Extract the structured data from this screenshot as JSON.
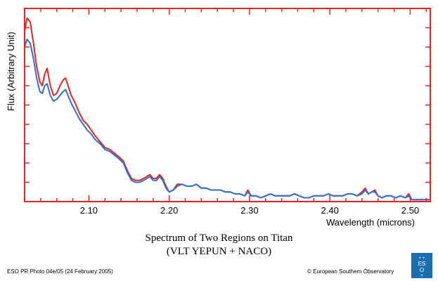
{
  "chart_data": {
    "type": "line",
    "title": "Spectrum of Two Regions on Titan",
    "subtitle": "(VLT YEPUN + NACO)",
    "xlabel": "Wavelength (microns)",
    "ylabel": "Flux (Arbitrary Unit)",
    "xlim": [
      2.02,
      2.525
    ],
    "ylim": [
      0,
      1
    ],
    "x_ticks": [
      2.1,
      2.2,
      2.3,
      2.4,
      2.5
    ],
    "x_tick_labels": [
      "2.10",
      "2.20",
      "2.30",
      "2.40",
      "2.50"
    ],
    "y_ticks": [
      0.1,
      0.2,
      0.3,
      0.4,
      0.5,
      0.6,
      0.7,
      0.8,
      0.9
    ],
    "grid": false,
    "series": [
      {
        "color": "#e8231f",
        "points": [
          [
            2.02,
            0.88
          ],
          [
            2.023,
            0.95
          ],
          [
            2.027,
            0.93
          ],
          [
            2.031,
            0.82
          ],
          [
            2.035,
            0.7
          ],
          [
            2.039,
            0.62
          ],
          [
            2.042,
            0.6
          ],
          [
            2.045,
            0.66
          ],
          [
            2.048,
            0.69
          ],
          [
            2.052,
            0.6
          ],
          [
            2.056,
            0.55
          ],
          [
            2.06,
            0.56
          ],
          [
            2.064,
            0.6
          ],
          [
            2.068,
            0.63
          ],
          [
            2.071,
            0.64
          ],
          [
            2.074,
            0.6
          ],
          [
            2.078,
            0.55
          ],
          [
            2.083,
            0.51
          ],
          [
            2.088,
            0.46
          ],
          [
            2.093,
            0.42
          ],
          [
            2.098,
            0.4
          ],
          [
            2.103,
            0.37
          ],
          [
            2.108,
            0.34
          ],
          [
            2.114,
            0.31
          ],
          [
            2.12,
            0.28
          ],
          [
            2.126,
            0.27
          ],
          [
            2.132,
            0.25
          ],
          [
            2.138,
            0.23
          ],
          [
            2.143,
            0.21
          ],
          [
            2.148,
            0.16
          ],
          [
            2.153,
            0.12
          ],
          [
            2.158,
            0.11
          ],
          [
            2.163,
            0.11
          ],
          [
            2.168,
            0.12
          ],
          [
            2.172,
            0.13
          ],
          [
            2.176,
            0.14
          ],
          [
            2.18,
            0.12
          ],
          [
            2.184,
            0.12
          ],
          [
            2.188,
            0.14
          ],
          [
            2.192,
            0.12
          ],
          [
            2.196,
            0.08
          ],
          [
            2.2,
            0.05
          ],
          [
            2.205,
            0.06
          ],
          [
            2.21,
            0.09
          ],
          [
            2.216,
            0.09
          ],
          [
            2.222,
            0.08
          ],
          [
            2.228,
            0.08
          ],
          [
            2.234,
            0.09
          ],
          [
            2.24,
            0.07
          ],
          [
            2.246,
            0.07
          ],
          [
            2.252,
            0.06
          ],
          [
            2.258,
            0.06
          ],
          [
            2.264,
            0.06
          ],
          [
            2.27,
            0.05
          ],
          [
            2.276,
            0.05
          ],
          [
            2.282,
            0.04
          ],
          [
            2.288,
            0.04
          ],
          [
            2.294,
            0.03
          ],
          [
            2.298,
            0.06
          ],
          [
            2.302,
            0.03
          ],
          [
            2.308,
            0.03
          ],
          [
            2.314,
            0.02
          ],
          [
            2.32,
            0.03
          ],
          [
            2.326,
            0.04
          ],
          [
            2.332,
            0.03
          ],
          [
            2.338,
            0.03
          ],
          [
            2.344,
            0.03
          ],
          [
            2.35,
            0.03
          ],
          [
            2.356,
            0.04
          ],
          [
            2.362,
            0.03
          ],
          [
            2.368,
            0.02
          ],
          [
            2.374,
            0.02
          ],
          [
            2.38,
            0.03
          ],
          [
            2.386,
            0.03
          ],
          [
            2.392,
            0.03
          ],
          [
            2.398,
            0.04
          ],
          [
            2.404,
            0.03
          ],
          [
            2.41,
            0.03
          ],
          [
            2.416,
            0.03
          ],
          [
            2.422,
            0.04
          ],
          [
            2.428,
            0.04
          ],
          [
            2.434,
            0.03
          ],
          [
            2.44,
            0.05
          ],
          [
            2.444,
            0.07
          ],
          [
            2.448,
            0.04
          ],
          [
            2.452,
            0.05
          ],
          [
            2.456,
            0.06
          ],
          [
            2.46,
            0.03
          ],
          [
            2.465,
            0.02
          ],
          [
            2.47,
            0.03
          ],
          [
            2.476,
            0.03
          ],
          [
            2.482,
            0.02
          ],
          [
            2.488,
            0.03
          ],
          [
            2.494,
            0.02
          ],
          [
            2.498,
            0.04
          ],
          [
            2.502,
            0.01
          ],
          [
            2.508,
            0.01
          ],
          [
            2.514,
            0.01
          ],
          [
            2.52,
            0.01
          ],
          [
            2.525,
            0.01
          ]
        ]
      },
      {
        "color": "#2a6fdb",
        "points": [
          [
            2.02,
            0.8
          ],
          [
            2.023,
            0.84
          ],
          [
            2.027,
            0.82
          ],
          [
            2.031,
            0.74
          ],
          [
            2.035,
            0.64
          ],
          [
            2.039,
            0.57
          ],
          [
            2.042,
            0.56
          ],
          [
            2.045,
            0.6
          ],
          [
            2.048,
            0.61
          ],
          [
            2.052,
            0.55
          ],
          [
            2.056,
            0.52
          ],
          [
            2.06,
            0.53
          ],
          [
            2.064,
            0.55
          ],
          [
            2.068,
            0.57
          ],
          [
            2.071,
            0.58
          ],
          [
            2.074,
            0.55
          ],
          [
            2.078,
            0.51
          ],
          [
            2.083,
            0.47
          ],
          [
            2.088,
            0.43
          ],
          [
            2.093,
            0.4
          ],
          [
            2.098,
            0.37
          ],
          [
            2.103,
            0.35
          ],
          [
            2.108,
            0.32
          ],
          [
            2.114,
            0.3
          ],
          [
            2.12,
            0.27
          ],
          [
            2.126,
            0.26
          ],
          [
            2.132,
            0.24
          ],
          [
            2.138,
            0.22
          ],
          [
            2.143,
            0.2
          ],
          [
            2.148,
            0.15
          ],
          [
            2.153,
            0.11
          ],
          [
            2.158,
            0.1
          ],
          [
            2.163,
            0.1
          ],
          [
            2.168,
            0.11
          ],
          [
            2.172,
            0.12
          ],
          [
            2.176,
            0.13
          ],
          [
            2.18,
            0.11
          ],
          [
            2.184,
            0.11
          ],
          [
            2.188,
            0.13
          ],
          [
            2.192,
            0.11
          ],
          [
            2.196,
            0.07
          ],
          [
            2.2,
            0.05
          ],
          [
            2.205,
            0.06
          ],
          [
            2.21,
            0.08
          ],
          [
            2.216,
            0.09
          ],
          [
            2.222,
            0.08
          ],
          [
            2.228,
            0.08
          ],
          [
            2.234,
            0.09
          ],
          [
            2.24,
            0.07
          ],
          [
            2.246,
            0.07
          ],
          [
            2.252,
            0.06
          ],
          [
            2.258,
            0.06
          ],
          [
            2.264,
            0.06
          ],
          [
            2.27,
            0.05
          ],
          [
            2.276,
            0.05
          ],
          [
            2.282,
            0.04
          ],
          [
            2.288,
            0.04
          ],
          [
            2.294,
            0.03
          ],
          [
            2.298,
            0.05
          ],
          [
            2.302,
            0.03
          ],
          [
            2.308,
            0.03
          ],
          [
            2.314,
            0.02
          ],
          [
            2.32,
            0.03
          ],
          [
            2.326,
            0.04
          ],
          [
            2.332,
            0.03
          ],
          [
            2.338,
            0.03
          ],
          [
            2.344,
            0.03
          ],
          [
            2.35,
            0.03
          ],
          [
            2.356,
            0.04
          ],
          [
            2.362,
            0.03
          ],
          [
            2.368,
            0.02
          ],
          [
            2.374,
            0.02
          ],
          [
            2.38,
            0.03
          ],
          [
            2.386,
            0.03
          ],
          [
            2.392,
            0.03
          ],
          [
            2.398,
            0.04
          ],
          [
            2.404,
            0.03
          ],
          [
            2.41,
            0.03
          ],
          [
            2.416,
            0.03
          ],
          [
            2.422,
            0.04
          ],
          [
            2.428,
            0.04
          ],
          [
            2.434,
            0.03
          ],
          [
            2.44,
            0.04
          ],
          [
            2.444,
            0.06
          ],
          [
            2.448,
            0.04
          ],
          [
            2.452,
            0.05
          ],
          [
            2.456,
            0.05
          ],
          [
            2.46,
            0.03
          ],
          [
            2.465,
            0.02
          ],
          [
            2.47,
            0.03
          ],
          [
            2.476,
            0.03
          ],
          [
            2.482,
            0.02
          ],
          [
            2.488,
            0.03
          ],
          [
            2.494,
            0.02
          ],
          [
            2.498,
            0.03
          ],
          [
            2.502,
            0.01
          ],
          [
            2.508,
            0.01
          ],
          [
            2.514,
            0.01
          ],
          [
            2.52,
            0.01
          ],
          [
            2.525,
            0.01
          ]
        ]
      }
    ]
  },
  "frame_color": "#e8231f",
  "footer": {
    "left": "ESO PR Photo 04e/05 (24 February 2005)",
    "right": "© European Southern Observatory"
  },
  "logo": {
    "icon": "eso-logo-icon",
    "color": "#1a6fb0"
  }
}
